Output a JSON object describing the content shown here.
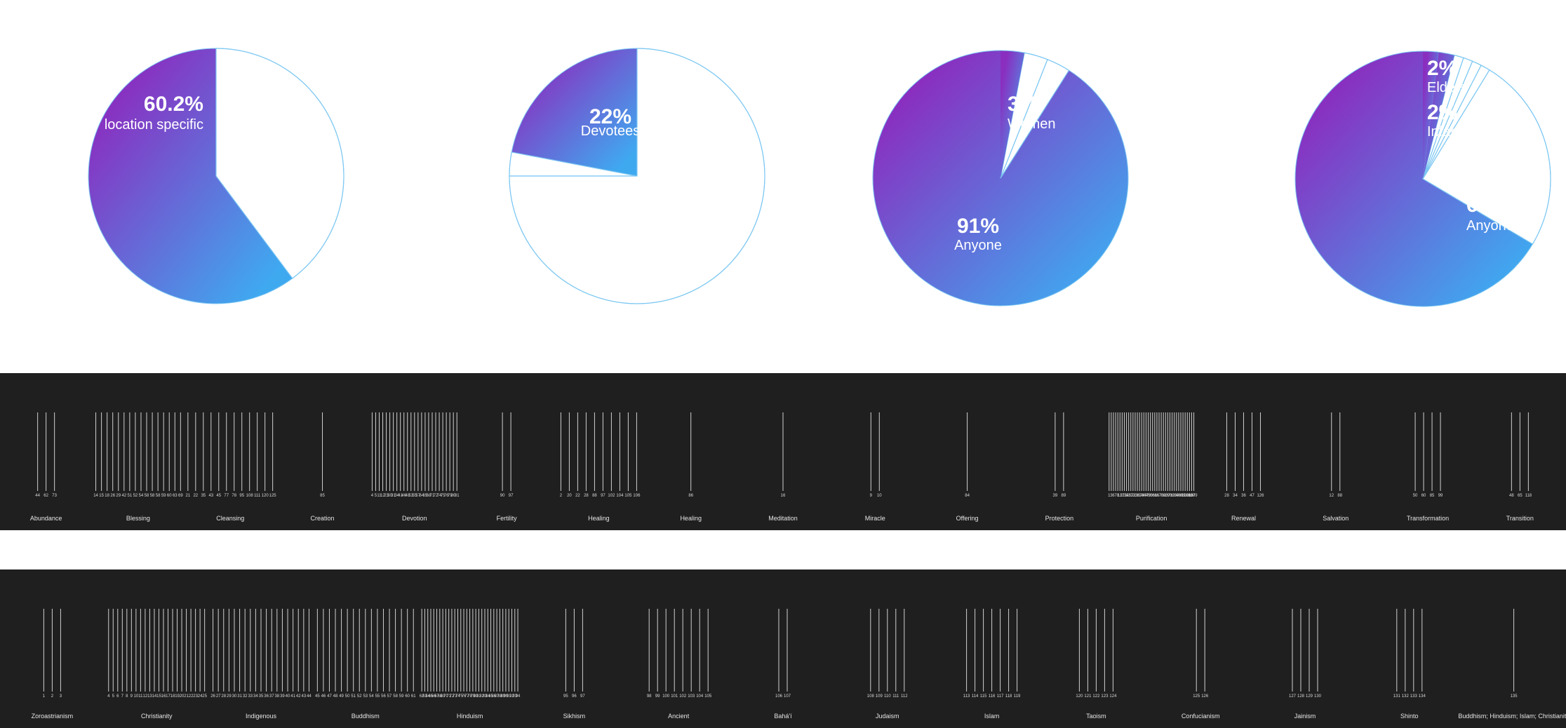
{
  "colors": {
    "gradient_start": "#8a2ec0",
    "gradient_end": "#3fa9f0",
    "pie_outline": "#7cc7f2",
    "strip_bg": "#1f1f1f",
    "strip_line": "#d0d0d0"
  },
  "chart_data": [
    {
      "type": "pie",
      "name_key": "pie1",
      "slices": [
        {
          "value": 60.2,
          "filled": true,
          "pct_label": "60.2%",
          "caption": "location specific"
        },
        {
          "value": 39.8,
          "filled": false,
          "pct_label": "",
          "caption": ""
        }
      ]
    },
    {
      "type": "pie",
      "name_key": "pie2",
      "slices": [
        {
          "value": 22,
          "filled": true,
          "pct_label": "22%",
          "caption": "Devotees"
        },
        {
          "value": 3,
          "filled": false,
          "pct_label": "",
          "caption": ""
        },
        {
          "value": 75,
          "filled": false,
          "pct_label": "",
          "caption": ""
        }
      ]
    },
    {
      "type": "pie",
      "name_key": "pie3",
      "slices": [
        {
          "value": 91,
          "filled": true,
          "pct_label": "91%",
          "caption": "Anyone"
        },
        {
          "value": 3,
          "filled": false,
          "pct_label": "",
          "caption": ""
        },
        {
          "value": 3,
          "filled": false,
          "pct_label": "",
          "caption": ""
        },
        {
          "value": 3,
          "filled": true,
          "pct_label": "3%",
          "caption": "Women"
        }
      ]
    },
    {
      "type": "pie",
      "name_key": "pie4",
      "slices": [
        {
          "value": 67,
          "filled": true,
          "pct_label": "67%",
          "caption": "Anyone"
        },
        {
          "value": 25,
          "filled": false,
          "pct_label": "",
          "caption": ""
        },
        {
          "value": 1.2,
          "filled": false,
          "pct_label": "",
          "caption": ""
        },
        {
          "value": 1.2,
          "filled": false,
          "pct_label": "",
          "caption": ""
        },
        {
          "value": 1.2,
          "filled": false,
          "pct_label": "",
          "caption": ""
        },
        {
          "value": 1.2,
          "filled": false,
          "pct_label": "",
          "caption": ""
        },
        {
          "value": 2,
          "filled": true,
          "pct_label": "2%",
          "caption": "Infants"
        },
        {
          "value": 2,
          "filled": true,
          "pct_label": "2%",
          "caption": "Elders"
        }
      ]
    },
    {
      "type": "strip",
      "name_key": "ritual-purpose-strip",
      "categories": [
        {
          "label": "Abundance",
          "ids": [
            44,
            62,
            73
          ]
        },
        {
          "label": "Blessing",
          "ids": [
            14,
            15,
            18,
            26,
            29,
            42,
            51,
            52,
            54,
            58,
            58,
            58,
            59,
            60,
            63,
            69
          ]
        },
        {
          "label": "Cleansing",
          "ids": [
            21,
            22,
            35,
            43,
            45,
            77,
            78,
            95,
            108,
            111,
            120,
            125
          ]
        },
        {
          "label": "Creation",
          "ids": [
            85
          ]
        },
        {
          "label": "Devotion",
          "ids": [
            4,
            5,
            11,
            12,
            23,
            30,
            31,
            34,
            41,
            46,
            48,
            53,
            55,
            57,
            64,
            65,
            68,
            71,
            72,
            74,
            75,
            76,
            79,
            80,
            81
          ]
        },
        {
          "label": "Fertility",
          "ids": [
            90,
            97
          ]
        },
        {
          "label": "Healing",
          "ids": [
            2,
            20,
            22,
            28,
            88,
            97,
            102,
            104,
            105,
            106
          ]
        },
        {
          "label": "Healing",
          "ids": [
            86
          ]
        },
        {
          "label": "Meditation",
          "ids": [
            16
          ]
        },
        {
          "label": "Miracle",
          "ids": [
            9,
            10
          ]
        },
        {
          "label": "Offering",
          "ids": [
            84
          ]
        },
        {
          "label": "Protection",
          "ids": [
            39,
            89
          ]
        },
        {
          "label": "Purification",
          "ids": [
            1,
            3,
            6,
            7,
            8,
            13,
            17,
            19,
            24,
            25,
            27,
            32,
            33,
            36,
            37,
            38,
            40,
            47,
            49,
            50,
            56,
            61,
            66,
            67,
            70,
            82,
            83,
            87,
            91,
            92,
            93,
            94,
            96,
            98,
            99,
            100,
            101,
            103,
            107,
            109
          ]
        },
        {
          "label": "Renewal",
          "ids": [
            28,
            34,
            36,
            47,
            126
          ]
        },
        {
          "label": "Salvation",
          "ids": [
            12,
            88
          ]
        },
        {
          "label": "Transformation",
          "ids": [
            50,
            60,
            85,
            99
          ]
        },
        {
          "label": "Transition",
          "ids": [
            48,
            65,
            118
          ]
        }
      ]
    },
    {
      "type": "strip",
      "name_key": "religion-strip",
      "categories": [
        {
          "label": "Zoroastrianism",
          "ids": [
            1,
            2,
            3
          ]
        },
        {
          "label": "Christianity",
          "ids": [
            4,
            5,
            6,
            7,
            8,
            9,
            10,
            11,
            12,
            13,
            14,
            15,
            16,
            17,
            18,
            19,
            20,
            21,
            22,
            23,
            24,
            25
          ]
        },
        {
          "label": "Indigenous",
          "ids": [
            26,
            27,
            28,
            29,
            30,
            31,
            32,
            33,
            34,
            35,
            36,
            37,
            38,
            39,
            40,
            41,
            42,
            43,
            44
          ]
        },
        {
          "label": "Buddhism",
          "ids": [
            45,
            46,
            47,
            48,
            49,
            50,
            51,
            52,
            53,
            54,
            55,
            56,
            57,
            58,
            59,
            60,
            61
          ]
        },
        {
          "label": "Hinduism",
          "ids": [
            62,
            63,
            64,
            65,
            66,
            67,
            68,
            69,
            70,
            71,
            72,
            73,
            74,
            75,
            76,
            77,
            78,
            79,
            80,
            81,
            82,
            83,
            84,
            85,
            86,
            87,
            88,
            89,
            90,
            91,
            92,
            93,
            94
          ]
        },
        {
          "label": "Sikhism",
          "ids": [
            95,
            96,
            97
          ]
        },
        {
          "label": "Ancient",
          "ids": [
            98,
            99,
            100,
            101,
            102,
            103,
            104,
            105
          ]
        },
        {
          "label": "Bahá'í",
          "ids": [
            106,
            107
          ]
        },
        {
          "label": "Judaism",
          "ids": [
            108,
            109,
            110,
            111,
            112
          ]
        },
        {
          "label": "Islam",
          "ids": [
            113,
            114,
            115,
            116,
            117,
            118,
            119
          ]
        },
        {
          "label": "Taoism",
          "ids": [
            120,
            121,
            122,
            123,
            124
          ]
        },
        {
          "label": "Confucianism",
          "ids": [
            125,
            126
          ]
        },
        {
          "label": "Jainism",
          "ids": [
            127,
            128,
            129,
            130
          ]
        },
        {
          "label": "Shinto",
          "ids": [
            131,
            132,
            133,
            134
          ]
        },
        {
          "label": "Buddhism; Hinduism; Islam; Christianity",
          "ids": [
            135
          ]
        }
      ]
    }
  ]
}
